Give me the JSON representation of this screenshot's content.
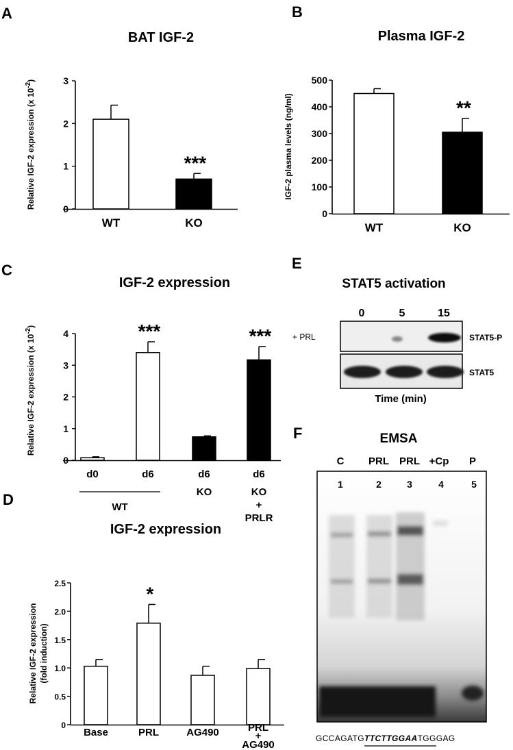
{
  "chart_data": [
    {
      "panel": "A",
      "type": "bar",
      "title": "BAT IGF-2",
      "ylabel": "Relative IGF-2 expression (x 10",
      "ylabel_exp": "-2",
      "ylabel_close": ")",
      "ylim": [
        0,
        3
      ],
      "yticks": [
        "0",
        "1",
        "2",
        "3"
      ],
      "categories": [
        "WT",
        "KO"
      ],
      "values": [
        2.1,
        0.7
      ],
      "errors": [
        0.33,
        0.13
      ],
      "fills": [
        "#ffffff",
        "#000000"
      ],
      "significance": [
        "",
        "***"
      ]
    },
    {
      "panel": "B",
      "type": "bar",
      "title": "Plasma IGF-2",
      "ylabel": "IGF-2 plasma levels (ng/ml)",
      "ylim": [
        0,
        500
      ],
      "yticks": [
        "0",
        "100",
        "200",
        "300",
        "400",
        "500"
      ],
      "categories": [
        "WT",
        "KO"
      ],
      "values": [
        450,
        305
      ],
      "errors": [
        18,
        52
      ],
      "fills": [
        "#ffffff",
        "#000000"
      ],
      "significance": [
        "",
        "**"
      ]
    },
    {
      "panel": "C",
      "type": "bar",
      "title": "IGF-2 expression",
      "ylabel": "Relative IGF-2 expression (x 10",
      "ylabel_exp": "-2",
      "ylabel_close": ")",
      "ylim": [
        0,
        4
      ],
      "yticks": [
        "0",
        "1",
        "2",
        "3",
        "4"
      ],
      "categories": [
        "d0",
        "d6",
        "d6",
        "d6"
      ],
      "group_labels": [
        "WT",
        "KO",
        "KO",
        "+",
        "PRLR"
      ],
      "values": [
        0.08,
        3.4,
        0.74,
        3.17
      ],
      "errors": [
        0.03,
        0.34,
        0.03,
        0.42
      ],
      "fills": [
        "#ffffff",
        "#ffffff",
        "#000000",
        "#000000"
      ],
      "significance": [
        "",
        "***",
        "",
        "***"
      ]
    },
    {
      "panel": "D",
      "type": "bar",
      "title": "IGF-2 expression",
      "ylabel": "Relative IGF-2 expression",
      "ylabel2": "(fold induction)",
      "ylim": [
        0,
        2.5
      ],
      "yticks": [
        "0",
        "0.5",
        "1.0",
        "1.5",
        "2.0",
        "2.5"
      ],
      "categories": [
        "Base",
        "PRL",
        "AG490",
        "PRL"
      ],
      "category_extra": [
        "+",
        "AG490"
      ],
      "values": [
        1.03,
        1.79,
        0.87,
        0.99
      ],
      "errors": [
        0.12,
        0.33,
        0.16,
        0.16
      ],
      "fills": [
        "#ffffff",
        "#ffffff",
        "#ffffff",
        "#ffffff"
      ],
      "significance": [
        "",
        "*",
        "",
        ""
      ]
    }
  ],
  "blot": {
    "panel": "E",
    "title": "STAT5 activation",
    "lanes": [
      "0",
      "5",
      "15"
    ],
    "row_left_label": "+ PRL",
    "row_labels": [
      "STAT5-P",
      "STAT5"
    ],
    "xlabel": "Time (min)"
  },
  "emsa": {
    "panel": "F",
    "title": "EMSA",
    "lane_labels": [
      "C",
      "PRL",
      "PRL",
      "+Cp",
      "P"
    ],
    "lane_numbers": [
      "1",
      "2",
      "3",
      "4",
      "5"
    ],
    "seq_prefix": "GCCAGATG",
    "seq_motif": "TTCTTGGAA",
    "seq_suffix": "TGGGAG"
  }
}
